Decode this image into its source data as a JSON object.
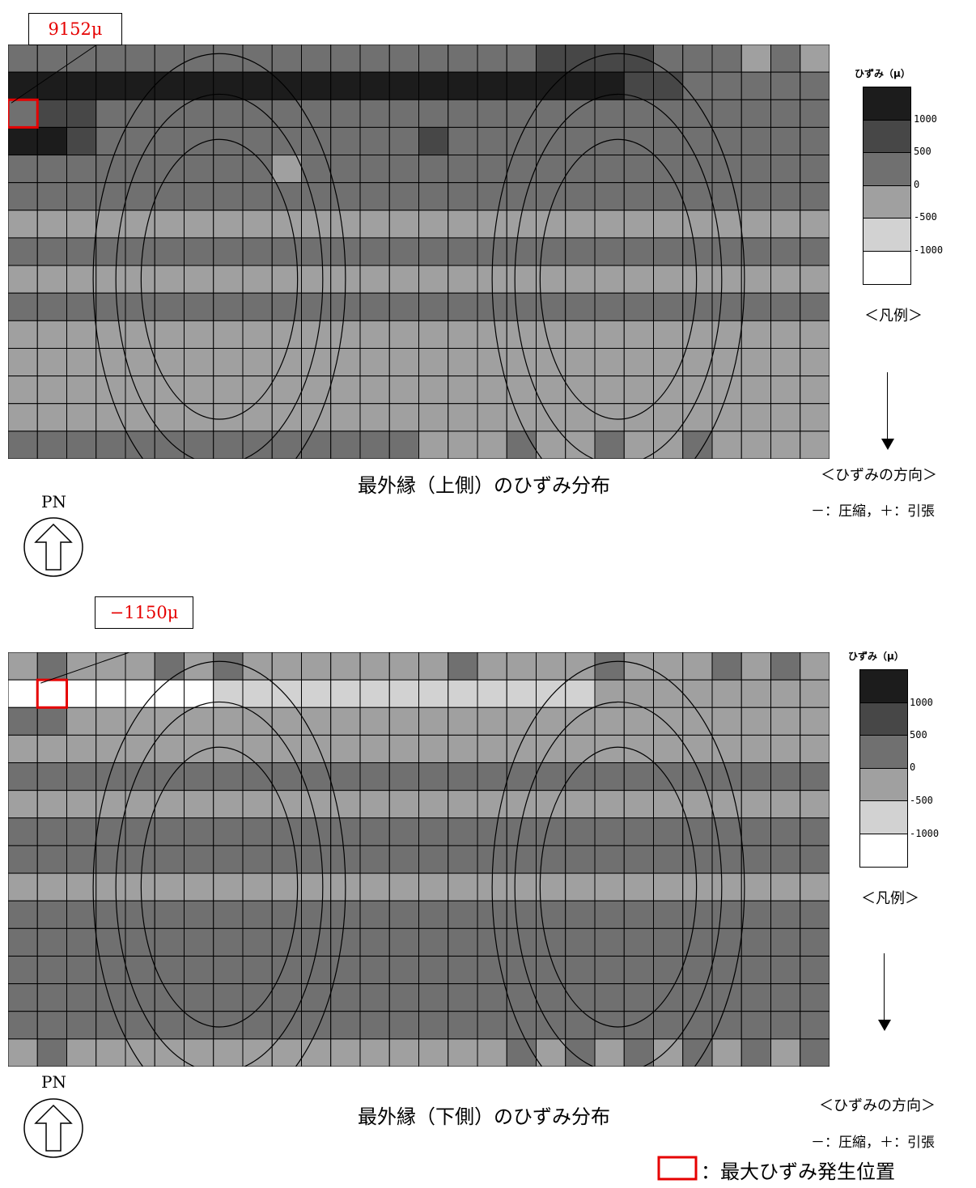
{
  "upper": {
    "caption": "最外縁（上側）のひずみ分布",
    "max_label": "9152μ",
    "compass_label": "PN",
    "legend_title": "ひずみ（μ）",
    "legend_ticks": [
      "1000",
      "500",
      "0",
      "-500",
      "-1000"
    ],
    "legend_name": "＜凡例＞",
    "direction_label": "＜ひずみの方向＞",
    "sign_label": "－：圧縮，＋：引張"
  },
  "lower": {
    "caption": "最外縁（下側）のひずみ分布",
    "max_label": "−1150μ",
    "compass_label": "PN",
    "legend_title": "ひずみ（μ）",
    "legend_ticks": [
      "1000",
      "500",
      "0",
      "-500",
      "-1000"
    ],
    "legend_name": "＜凡例＞",
    "direction_label": "＜ひずみの方向＞",
    "sign_label": "－：圧縮，＋：引張"
  },
  "footer": {
    "key_label": "：最大ひずみ発生位置"
  },
  "colors": {
    "band_gt_1000": "#1c1c1c",
    "band_500_1000": "#474747",
    "band_0_500": "#707070",
    "band_m500_0": "#a0a0a0",
    "band_m1000_m500": "#d2d2d2",
    "band_lt_m1000": "#ffffff",
    "max_marker": "#e60000"
  },
  "mesh": {
    "columns": 28,
    "rows": 15,
    "upper_rows": [
      "2222222222222222221111222323",
      "0000000000000000000001122222",
      "2112222222222222222222222222",
      "0012222222222212222222222222",
      "2222222223222222222222222222",
      "2222222222222222222222222222",
      "3333333333333333333333333333",
      "2222222222222222222222222222",
      "3333333333333333333333333333",
      "2222222222222222222222222222",
      "3333333333333333333333333333",
      "3333333333333333333333333333",
      "3333333333333333333333333333",
      "3333333333333333333333333333",
      "2222222222222233323323323333"
    ],
    "lower_rows": [
      "3233323233333332333323332323",
      "5555555444444444444433333333",
      "2233333333333333333333333333",
      "3333333333333333333333333333",
      "2222222222222222222222222222",
      "3333333333333333333333333333",
      "2222222222222222222222222222",
      "2222222222222222222222222222",
      "3333333333333333333333333333",
      "2222222222222222222222222222",
      "2222222222222222222222222222",
      "2222222222222222222222222222",
      "2222222222222222222222222222",
      "2222222222222222222222222222",
      "3233333333333333323232323232"
    ]
  }
}
